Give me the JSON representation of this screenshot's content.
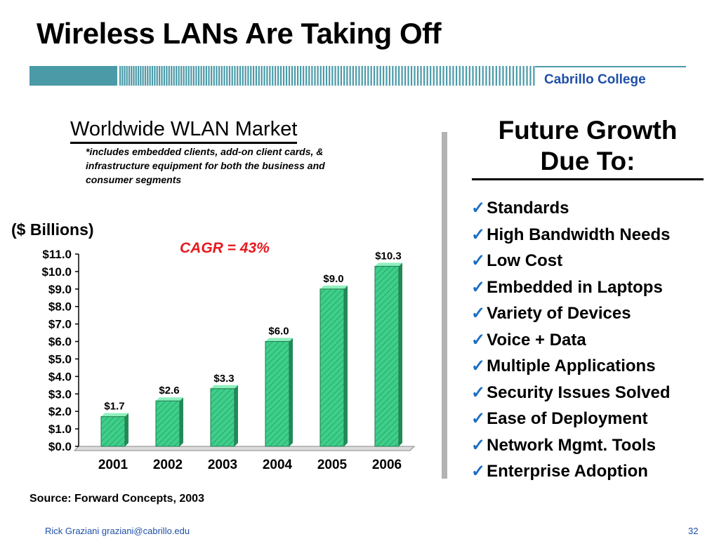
{
  "slide": {
    "title": "Wireless LANs Are Taking Off",
    "brand": "Cabrillo College",
    "unit_label": "($ Billions)",
    "cagr": "CAGR = 43%",
    "source": "Source:  Forward Concepts, 2003",
    "footer_author": "Rick Graziani  graziani@cabrillo.edu",
    "page_number": "32",
    "colors": {
      "bar": "#3ecf8a",
      "brand": "#1f4fa8",
      "cagr": "#e8191f",
      "stripe": "#4a9aa8"
    }
  },
  "chart_data": {
    "type": "bar",
    "title": "Worldwide WLAN Market",
    "subtitle": "*includes embedded clients, add-on client cards, & infrastructure equipment for both the business and consumer segments",
    "ylabel": "($ Billions)",
    "categories": [
      "2001",
      "2002",
      "2003",
      "2004",
      "2005",
      "2006"
    ],
    "values": [
      1.7,
      2.6,
      3.3,
      6.0,
      9.0,
      10.3
    ],
    "data_labels": [
      "$1.7",
      "$2.6",
      "$3.3",
      "$6.0",
      "$9.0",
      "$10.3"
    ],
    "yticks": [
      "$0.0",
      "$1.0",
      "$2.0",
      "$3.0",
      "$4.0",
      "$5.0",
      "$6.0",
      "$7.0",
      "$8.0",
      "$9.0",
      "$10.0",
      "$11.0"
    ],
    "ylim": [
      0,
      11
    ],
    "grid": false,
    "legend": "none"
  },
  "growth": {
    "title": "Future Growth Due To:",
    "items": [
      "Standards",
      "High Bandwidth Needs",
      "Low Cost",
      "Embedded in Laptops",
      "Variety of Devices",
      "Voice + Data",
      "Multiple Applications",
      "Security Issues Solved",
      "Ease of Deployment",
      "Network Mgmt. Tools",
      "Enterprise Adoption"
    ]
  }
}
